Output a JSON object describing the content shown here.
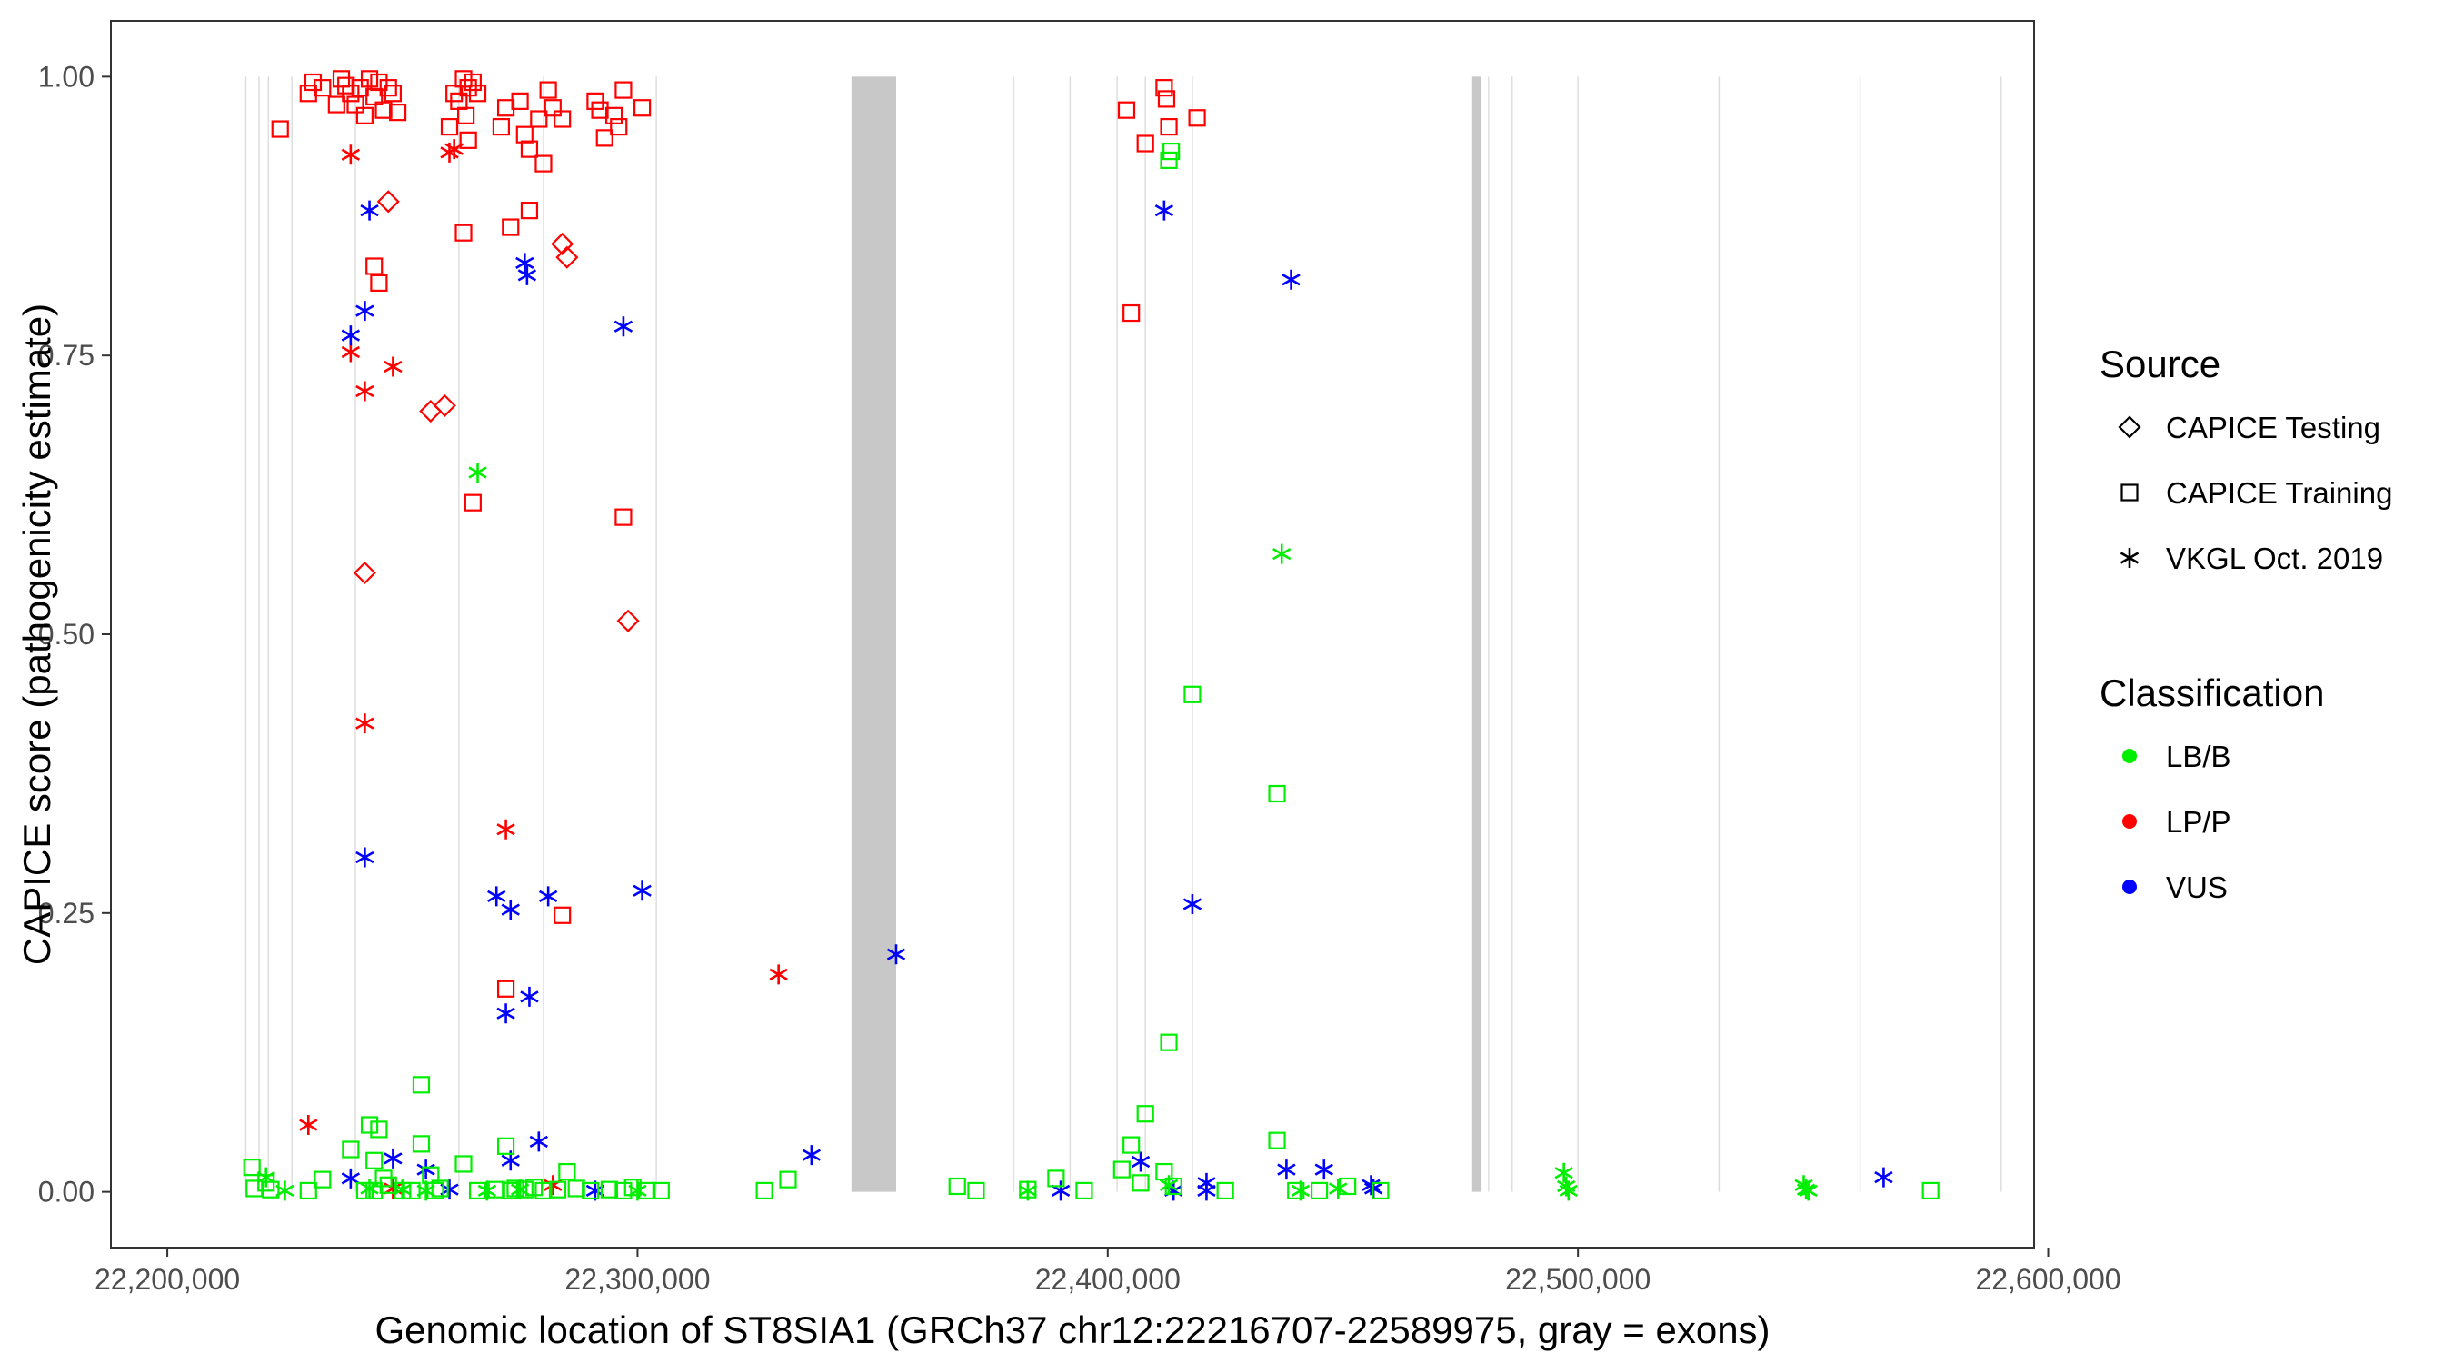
{
  "chart_data": {
    "type": "scatter",
    "title": "",
    "xlabel": "Genomic location of ST8SIA1 (GRCh37 chr12:22216707-22589975, gray = exons)",
    "ylabel": "CAPICE score (pathogenicity estimate)",
    "xlim": [
      22188000,
      22597000
    ],
    "ylim": [
      -0.05,
      1.05
    ],
    "x_ticks": [
      22200000,
      22300000,
      22400000,
      22500000,
      22600000
    ],
    "x_tick_labels": [
      "22,200,000",
      "22,300,000",
      "22,400,000",
      "22,500,000",
      "22,600,000"
    ],
    "y_ticks": [
      0,
      0.25,
      0.5,
      0.75,
      1
    ],
    "y_tick_labels": [
      "0.00",
      "0.25",
      "0.50",
      "0.75",
      "1.00"
    ],
    "grid": "vertical lines only (gene features)",
    "legend_placement": "right",
    "exons": [
      [
        22345500,
        22355000
      ],
      [
        22477500,
        22479500
      ]
    ],
    "feature_lines": [
      22216700,
      22219500,
      22221500,
      22226500,
      22240000,
      22262000,
      22280000,
      22304000,
      22380000,
      22392000,
      22402000,
      22408000,
      22418000,
      22481000,
      22486000,
      22500000,
      22530000,
      22560000,
      22590000
    ],
    "legend": {
      "source_title": "Source",
      "source_entries": [
        {
          "label": "CAPICE Testing",
          "shape": "diamond"
        },
        {
          "label": "CAPICE Training",
          "shape": "square"
        },
        {
          "label": "VKGL Oct. 2019",
          "shape": "asterisk"
        }
      ],
      "class_title": "Classification",
      "class_entries": [
        {
          "label": "LB/B",
          "color": "#00ee00"
        },
        {
          "label": "LP/P",
          "color": "#ff0000"
        },
        {
          "label": "VUS",
          "color": "#0000ff"
        }
      ]
    },
    "series": [
      {
        "source": "CAPICE Testing",
        "shape": "diamond",
        "classification": "LP/P",
        "color": "#ff0000",
        "points": [
          [
            22247000,
            0.888
          ],
          [
            22284000,
            0.85
          ],
          [
            22285000,
            0.838
          ],
          [
            22256000,
            0.7
          ],
          [
            22259000,
            0.705
          ],
          [
            22242000,
            0.555
          ],
          [
            22298000,
            0.512
          ]
        ]
      },
      {
        "source": "CAPICE Training",
        "shape": "square",
        "classification": "LP/P",
        "color": "#ff0000",
        "points": [
          [
            22224000,
            0.953
          ],
          [
            22230000,
            0.985
          ],
          [
            22231000,
            0.995
          ],
          [
            22233000,
            0.99
          ],
          [
            22236000,
            0.975
          ],
          [
            22237000,
            0.998
          ],
          [
            22238000,
            0.992
          ],
          [
            22239000,
            0.985
          ],
          [
            22240000,
            0.975
          ],
          [
            22241000,
            0.99
          ],
          [
            22242000,
            0.965
          ],
          [
            22243000,
            0.998
          ],
          [
            22244000,
            0.982
          ],
          [
            22245000,
            0.995
          ],
          [
            22246000,
            0.97
          ],
          [
            22247000,
            0.99
          ],
          [
            22248000,
            0.985
          ],
          [
            22249000,
            0.968
          ],
          [
            22260000,
            0.955
          ],
          [
            22261000,
            0.985
          ],
          [
            22262000,
            0.978
          ],
          [
            22263000,
            0.998
          ],
          [
            22264000,
            0.99
          ],
          [
            22265000,
            0.995
          ],
          [
            22266000,
            0.985
          ],
          [
            22263500,
            0.965
          ],
          [
            22264000,
            0.943
          ],
          [
            22271000,
            0.955
          ],
          [
            22272000,
            0.972
          ],
          [
            22275000,
            0.978
          ],
          [
            22276000,
            0.948
          ],
          [
            22277000,
            0.935
          ],
          [
            22279000,
            0.962
          ],
          [
            22281000,
            0.988
          ],
          [
            22282000,
            0.972
          ],
          [
            22284000,
            0.962
          ],
          [
            22280000,
            0.922
          ],
          [
            22291000,
            0.978
          ],
          [
            22292000,
            0.97
          ],
          [
            22293000,
            0.945
          ],
          [
            22295000,
            0.965
          ],
          [
            22296000,
            0.955
          ],
          [
            22297000,
            0.988
          ],
          [
            22301000,
            0.972
          ],
          [
            22244000,
            0.83
          ],
          [
            22245000,
            0.815
          ],
          [
            22263000,
            0.86
          ],
          [
            22273000,
            0.865
          ],
          [
            22277000,
            0.88
          ],
          [
            22265000,
            0.618
          ],
          [
            22297000,
            0.605
          ],
          [
            22284000,
            0.248
          ],
          [
            22272000,
            0.182
          ],
          [
            22404000,
            0.97
          ],
          [
            22408000,
            0.94
          ],
          [
            22412000,
            0.99
          ],
          [
            22412500,
            0.98
          ],
          [
            22413000,
            0.955
          ],
          [
            22419000,
            0.963
          ],
          [
            22405000,
            0.788
          ]
        ]
      },
      {
        "source": "VKGL Oct. 2019",
        "shape": "asterisk",
        "classification": "LP/P",
        "color": "#ff0000",
        "points": [
          [
            22239000,
            0.93
          ],
          [
            22260000,
            0.932
          ],
          [
            22261000,
            0.935
          ],
          [
            22239000,
            0.753
          ],
          [
            22242000,
            0.718
          ],
          [
            22248000,
            0.74
          ],
          [
            22242000,
            0.42
          ],
          [
            22272000,
            0.325
          ],
          [
            22330000,
            0.195
          ],
          [
            22230000,
            0.06
          ],
          [
            22282000,
            0.006
          ],
          [
            22248000,
            0.003
          ]
        ]
      },
      {
        "source": "VKGL Oct. 2019",
        "shape": "asterisk",
        "classification": "VUS",
        "color": "#0000ff",
        "points": [
          [
            22243000,
            0.88
          ],
          [
            22276000,
            0.833
          ],
          [
            22276500,
            0.822
          ],
          [
            22297000,
            0.776
          ],
          [
            22242000,
            0.79
          ],
          [
            22239000,
            0.768
          ],
          [
            22412000,
            0.88
          ],
          [
            22439000,
            0.818
          ],
          [
            22242000,
            0.3
          ],
          [
            22270000,
            0.265
          ],
          [
            22273000,
            0.253
          ],
          [
            22281000,
            0.265
          ],
          [
            22301000,
            0.27
          ],
          [
            22355000,
            0.213
          ],
          [
            22418000,
            0.258
          ],
          [
            22277000,
            0.175
          ],
          [
            22272000,
            0.16
          ],
          [
            22279000,
            0.045
          ],
          [
            22273000,
            0.028
          ],
          [
            22337000,
            0.033
          ],
          [
            22248000,
            0.03
          ],
          [
            22239000,
            0.012
          ],
          [
            22255000,
            0.02
          ],
          [
            22260000,
            0.002
          ],
          [
            22291000,
            0.001
          ],
          [
            22390000,
            0.001
          ],
          [
            22407000,
            0.027
          ],
          [
            22414000,
            0.001
          ],
          [
            22421000,
            0.008
          ],
          [
            22421000,
            0.001
          ],
          [
            22438000,
            0.02
          ],
          [
            22446000,
            0.02
          ],
          [
            22456000,
            0.006
          ],
          [
            22456500,
            0.003
          ],
          [
            22565000,
            0.013
          ]
        ]
      },
      {
        "source": "VKGL Oct. 2019",
        "shape": "asterisk",
        "classification": "LB/B",
        "color": "#00ee00",
        "points": [
          [
            22266000,
            0.645
          ],
          [
            22437000,
            0.572
          ],
          [
            22221000,
            0.013
          ],
          [
            22225000,
            0.001
          ],
          [
            22243000,
            0.003
          ],
          [
            22250000,
            0.002
          ],
          [
            22255000,
            0.001
          ],
          [
            22268000,
            0.001
          ],
          [
            22275000,
            0.002
          ],
          [
            22300000,
            0.001
          ],
          [
            22383000,
            0.001
          ],
          [
            22413000,
            0.006
          ],
          [
            22441000,
            0.001
          ],
          [
            22449000,
            0.003
          ],
          [
            22497000,
            0.017
          ],
          [
            22497500,
            0.005
          ],
          [
            22498000,
            0.001
          ],
          [
            22548000,
            0.006
          ],
          [
            22548500,
            0.002
          ],
          [
            22549000,
            0.001
          ]
        ]
      },
      {
        "source": "CAPICE Training",
        "shape": "square",
        "classification": "LB/B",
        "color": "#00ee00",
        "points": [
          [
            22218000,
            0.022
          ],
          [
            22218500,
            0.003
          ],
          [
            22221000,
            0.008
          ],
          [
            22222000,
            0.002
          ],
          [
            22230000,
            0.001
          ],
          [
            22233000,
            0.011
          ],
          [
            22239000,
            0.038
          ],
          [
            22242000,
            0.001
          ],
          [
            22243000,
            0.06
          ],
          [
            22244000,
            0.028
          ],
          [
            22245000,
            0.056
          ],
          [
            22246000,
            0.012
          ],
          [
            22247000,
            0.006
          ],
          [
            22244000,
            0.001
          ],
          [
            22250000,
            0.001
          ],
          [
            22252000,
            0.001
          ],
          [
            22254000,
            0.096
          ],
          [
            22254000,
            0.043
          ],
          [
            22256000,
            0.015
          ],
          [
            22257000,
            0.001
          ],
          [
            22258000,
            0.003
          ],
          [
            22263000,
            0.025
          ],
          [
            22266000,
            0.001
          ],
          [
            22270000,
            0.002
          ],
          [
            22272000,
            0.041
          ],
          [
            22273000,
            0.001
          ],
          [
            22274000,
            0.003
          ],
          [
            22276000,
            0.002
          ],
          [
            22278000,
            0.004
          ],
          [
            22280000,
            0.001
          ],
          [
            22283000,
            0.002
          ],
          [
            22285000,
            0.018
          ],
          [
            22287000,
            0.003
          ],
          [
            22290000,
            0.001
          ],
          [
            22294000,
            0.002
          ],
          [
            22297000,
            0.001
          ],
          [
            22299000,
            0.004
          ],
          [
            22302000,
            0.001
          ],
          [
            22305000,
            0.001
          ],
          [
            22327000,
            0.001
          ],
          [
            22332000,
            0.011
          ],
          [
            22368000,
            0.005
          ],
          [
            22372000,
            0.001
          ],
          [
            22383000,
            0.002
          ],
          [
            22389000,
            0.012
          ],
          [
            22395000,
            0.001
          ],
          [
            22403000,
            0.02
          ],
          [
            22405000,
            0.042
          ],
          [
            22407000,
            0.008
          ],
          [
            22408000,
            0.07
          ],
          [
            22412000,
            0.018
          ],
          [
            22413000,
            0.134
          ],
          [
            22414000,
            0.005
          ],
          [
            22418000,
            0.446
          ],
          [
            22436000,
            0.357
          ],
          [
            22436000,
            0.046
          ],
          [
            22425000,
            0.001
          ],
          [
            22440000,
            0.001
          ],
          [
            22445000,
            0.001
          ],
          [
            22451000,
            0.005
          ],
          [
            22458000,
            0.001
          ],
          [
            22575000,
            0.001
          ],
          [
            22413000,
            0.925
          ],
          [
            22413500,
            0.933
          ]
        ]
      }
    ]
  }
}
